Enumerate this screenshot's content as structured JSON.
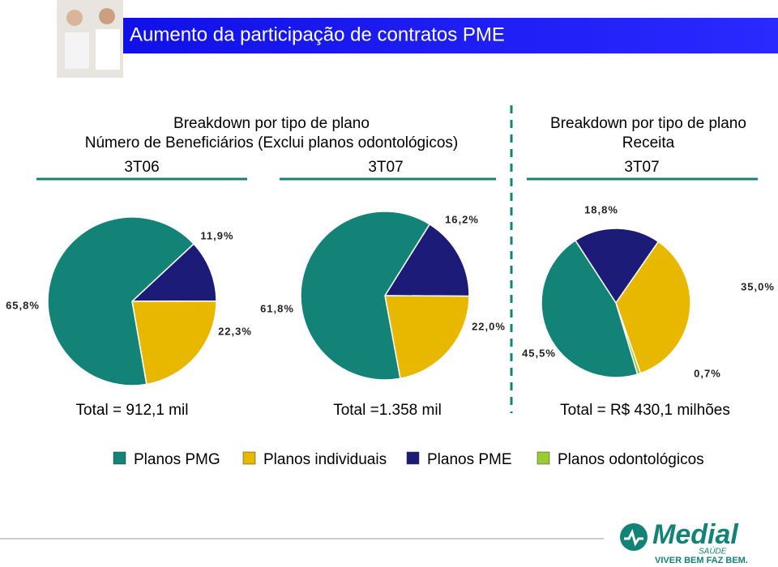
{
  "header": {
    "title": "Aumento da participação de contratos PME"
  },
  "left_panel": {
    "title": "Breakdown por tipo de plano",
    "subtitle": "Número de Beneficiários (Exclui planos odontológicos)"
  },
  "right_panel": {
    "title": "Breakdown por tipo de plano",
    "subtitle": "Receita"
  },
  "legend": [
    {
      "name": "Planos PMG",
      "color": "#138377"
    },
    {
      "name": "Planos individuais",
      "color": "#e8b800"
    },
    {
      "name": "Planos PME",
      "color": "#1c1c78"
    },
    {
      "name": "Planos odontológicos",
      "color": "#99cc33"
    }
  ],
  "chart_data": [
    {
      "type": "pie",
      "title": "3T06",
      "values": [
        65.8,
        22.3,
        11.9,
        null
      ],
      "value_labels": [
        "65,8%",
        "22,3%",
        "11,9%",
        null
      ],
      "total": "Total = 912,1 mil"
    },
    {
      "type": "pie",
      "title": "3T07",
      "values": [
        61.8,
        22.0,
        16.2,
        null
      ],
      "value_labels": [
        "61,8%",
        "22,0%",
        "16,2%",
        null
      ],
      "total": "Total =1.358 mil"
    },
    {
      "type": "pie",
      "title": "3T07",
      "values": [
        45.5,
        35.0,
        18.8,
        0.7
      ],
      "value_labels": [
        "45,5%",
        "35,0%",
        "18,8%",
        "0,7%"
      ],
      "total": "Total = R$ 430,1 milhões"
    }
  ],
  "logo": {
    "brand": "Medial",
    "sub": "SAÚDE",
    "slogan": "VIVER BEM FAZ BEM."
  }
}
